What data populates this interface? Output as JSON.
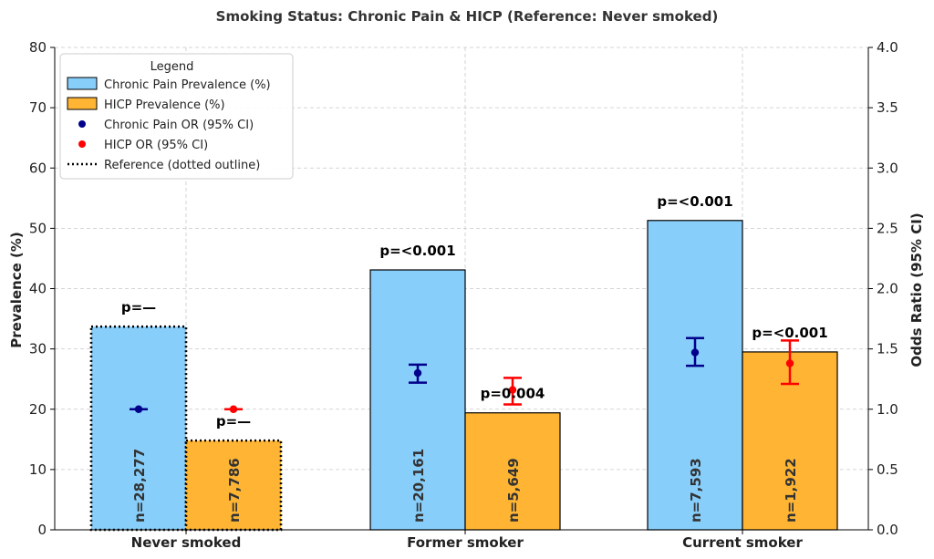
{
  "chart_data": {
    "type": "bar",
    "title": "Smoking Status: Chronic Pain & HICP (Reference: Never smoked)",
    "xlabel": "",
    "ylabel": "Prevalence (%)",
    "ylabel_right": "Odds Ratio (95% CI)",
    "ylim": [
      0,
      80
    ],
    "ylim_right": [
      0,
      4.0
    ],
    "yticks": [
      "0",
      "10",
      "20",
      "30",
      "40",
      "50",
      "60",
      "70",
      "80"
    ],
    "yticks_right": [
      "0.0",
      "0.5",
      "1.0",
      "1.5",
      "2.0",
      "2.5",
      "3.0",
      "3.5",
      "4.0"
    ],
    "grid": true,
    "categories": [
      "Never smoked",
      "Former smoker",
      "Current smoker"
    ],
    "series": [
      {
        "name": "Chronic Pain Prevalence (%)",
        "color": "#87cefa",
        "values": [
          33.7,
          43.1,
          51.3
        ],
        "n_labels": [
          "n=28,277",
          "n=20,161",
          "n=7,593"
        ],
        "p_labels": [
          "p=—",
          "p=<0.001",
          "p=<0.001"
        ]
      },
      {
        "name": "HICP Prevalence (%)",
        "color": "#ffb533",
        "values": [
          14.8,
          19.4,
          29.5
        ],
        "n_labels": [
          "n=7,786",
          "n=5,649",
          "n=1,922"
        ],
        "p_labels": [
          "p=—",
          "p=0.004",
          "p=<0.001"
        ]
      }
    ],
    "odds_ratios": [
      {
        "name": "Chronic Pain OR (95% CI)",
        "color": "#00008b",
        "or": [
          1.0,
          1.3,
          1.47
        ],
        "ci_low": [
          null,
          1.22,
          1.36
        ],
        "ci_high": [
          null,
          1.37,
          1.59
        ]
      },
      {
        "name": "HICP OR (95% CI)",
        "color": "#ff0000",
        "or": [
          1.0,
          1.16,
          1.38
        ],
        "ci_low": [
          null,
          1.04,
          1.21
        ],
        "ci_high": [
          null,
          1.26,
          1.57
        ]
      }
    ],
    "legend": {
      "title": "Legend",
      "position": "top-left",
      "reference_label": "Reference (dotted outline)"
    }
  }
}
